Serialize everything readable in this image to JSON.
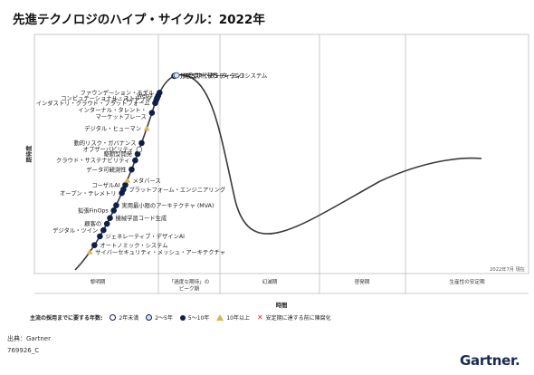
{
  "title": "先進テクノロジのハイプ・サイクル：2022年",
  "chart_data": {
    "type": "hype-cycle",
    "ylabel": "期待度",
    "xlabel": "時間",
    "date_note": "2022年7月 現在",
    "phases": [
      {
        "label": "黎明期"
      },
      {
        "label": "「過度な期待」の\nピーク期"
      },
      {
        "label": "幻滅期"
      },
      {
        "label": "啓発期"
      },
      {
        "label": "生産性の安定期"
      }
    ],
    "legend_title": "主流の採用までに要する年数:",
    "legend": [
      {
        "label": "2年未満",
        "marker": "circle-white"
      },
      {
        "label": "2～5年",
        "marker": "circle-lightblue"
      },
      {
        "label": "5～10年",
        "marker": "circle-navy"
      },
      {
        "label": "10年以上",
        "marker": "triangle-gold"
      },
      {
        "label": "安定期に達する前に陳腐化",
        "marker": "x-red"
      }
    ],
    "technologies": [
      {
        "name": "サイバーセキュリティ・メッシュ・アーキテクチャ",
        "marker": "triangle-gold",
        "t": 0.03,
        "side": "right"
      },
      {
        "name": "オートノミック・システム",
        "marker": "circle-navy",
        "t": 0.04,
        "side": "right"
      },
      {
        "name": "ジェネレーティブ・デザインAI",
        "marker": "circle-navy",
        "t": 0.052,
        "side": "right"
      },
      {
        "name": "デジタル・ツイン",
        "marker": "circle-navy",
        "t": 0.06,
        "side": "left"
      },
      {
        "name": "顧客の",
        "marker": "circle-navy",
        "t": 0.068,
        "side": "left"
      },
      {
        "name": "機械学習コード生成",
        "marker": "circle-navy",
        "t": 0.075,
        "side": "right"
      },
      {
        "name": "拡張FinOps",
        "marker": "circle-navy",
        "t": 0.084,
        "side": "left"
      },
      {
        "name": "実用最小限のアーキテクチャ (MVA)",
        "marker": "circle-navy",
        "t": 0.09,
        "side": "right"
      },
      {
        "name": "オープン・テレメトリ",
        "marker": "circle-navy",
        "t": 0.104,
        "side": "left"
      },
      {
        "name": "プラットフォーム・エンジニアリング",
        "marker": "circle-navy",
        "t": 0.108,
        "side": "right"
      },
      {
        "name": "コーザルAI",
        "marker": "circle-navy",
        "t": 0.113,
        "side": "left"
      },
      {
        "name": "メタバース",
        "marker": "triangle-gold",
        "t": 0.118,
        "side": "right"
      },
      {
        "name": "データ可観測性",
        "marker": "circle-navy",
        "t": 0.13,
        "side": "left"
      },
      {
        "name": "クラウド・サステナビリティ",
        "marker": "circle-navy",
        "t": 0.14,
        "side": "left"
      },
      {
        "name": "駆動型開発",
        "marker": "circle-navy",
        "t": 0.147,
        "side": "left"
      },
      {
        "name": "オブザーバビリティ",
        "marker": "circle-white",
        "t": 0.152,
        "side": "left"
      },
      {
        "name": "動的リスク・ガバナンス",
        "marker": "circle-navy",
        "t": 0.159,
        "side": "left"
      },
      {
        "name": "デジタル・ヒューマン",
        "marker": "triangle-gold",
        "t": 0.175,
        "side": "left"
      },
      {
        "name": "インターナル・タレント・\nマーケットプレース",
        "marker": "circle-navy",
        "t": 0.193,
        "side": "left"
      },
      {
        "name": "インダストリ・クラウド・プラットフォーム",
        "marker": "circle-navy",
        "t": 0.208,
        "side": "left"
      },
      {
        "name": "スーパーアプリ",
        "marker": "circle-navy",
        "t": 0.215,
        "side": "left"
      },
      {
        "name": "コンピュテーショナル・ストレージ",
        "marker": "circle-navy",
        "t": 0.22,
        "side": "left"
      },
      {
        "name": "Web3",
        "marker": "circle-navy",
        "t": 0.226,
        "side": "left"
      },
      {
        "name": "ファウンデーション・モデル",
        "marker": "circle-navy",
        "t": 0.234,
        "side": "left"
      },
      {
        "name": "分散型アイデンティティ",
        "marker": "circle-navy",
        "t": 0.314,
        "side": "right"
      },
      {
        "name": "NFT (非代替性トークン)",
        "marker": "circle-lightblue",
        "t": 0.32,
        "side": "right"
      },
      {
        "name": "クラウド・データ・エコシステム",
        "marker": "circle-lightblue",
        "t": 0.326,
        "side": "right"
      }
    ]
  },
  "footer": {
    "source": "出典：Gartner",
    "doc_id": "769926_C",
    "brand": "Gartner"
  },
  "colors": {
    "navy": "#0f1f4b",
    "lightblue": "#cfe6f7",
    "gold": "#d9b35a",
    "curve": "#3a3a3a",
    "grid": "#bdbdbd",
    "red": "#d22"
  }
}
